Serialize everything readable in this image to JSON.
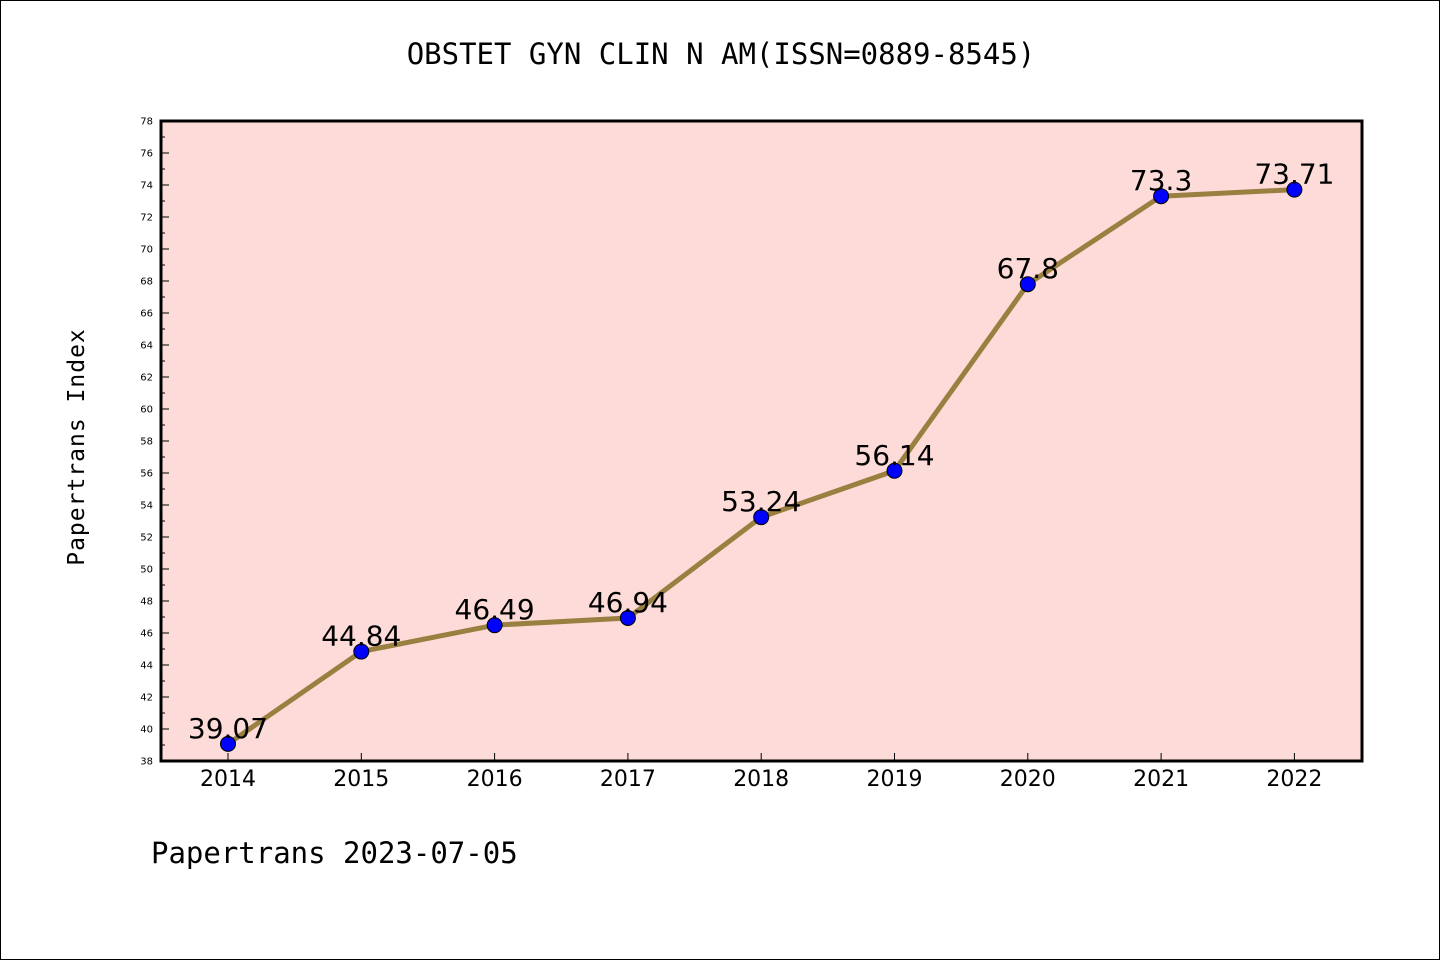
{
  "chart_data": {
    "type": "line",
    "title": "OBSTET GYN CLIN N AM(ISSN=0889-8545)",
    "ylabel": "Papertrans Index",
    "xlabel": "",
    "x": [
      "2014",
      "2015",
      "2016",
      "2017",
      "2018",
      "2019",
      "2020",
      "2021",
      "2022"
    ],
    "values": [
      39.07,
      44.84,
      46.49,
      46.94,
      53.24,
      56.14,
      67.8,
      73.3,
      73.71
    ],
    "data_labels": [
      "39.07",
      "44.84",
      "46.49",
      "46.94",
      "53.24",
      "56.14",
      "67.8",
      "73.3",
      "73.71"
    ],
    "ylim": [
      38,
      78
    ],
    "yticks": [
      "38",
      "40",
      "42",
      "44",
      "46",
      "48",
      "50",
      "52",
      "54",
      "56",
      "58",
      "60",
      "62",
      "64",
      "66",
      "68",
      "70",
      "72",
      "74",
      "76",
      "78"
    ],
    "grid": false,
    "colors": {
      "plot_background": "#fddbd8",
      "line": "#9a8040",
      "marker": "#0000ff"
    }
  },
  "footer": "Papertrans 2023-07-05"
}
